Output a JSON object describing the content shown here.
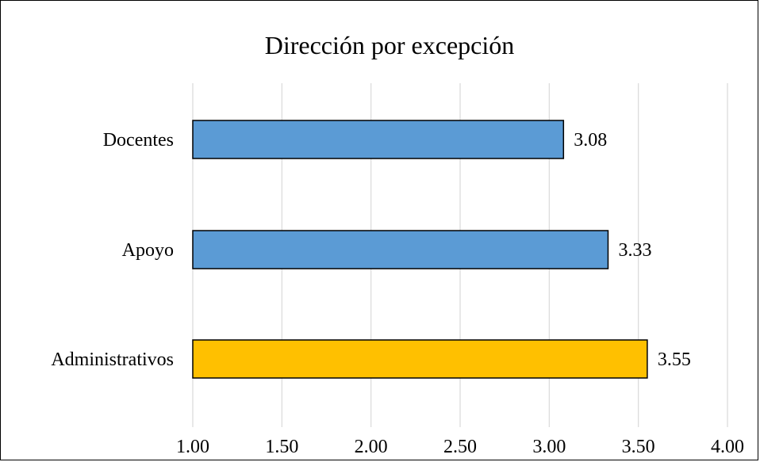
{
  "chart_data": {
    "type": "bar",
    "orientation": "horizontal",
    "title": "Dirección por excepción",
    "categories": [
      "Docentes",
      "Apoyo",
      "Administrativos"
    ],
    "values": [
      3.08,
      3.33,
      3.55
    ],
    "value_labels": [
      "3.08",
      "3.33",
      "3.55"
    ],
    "bar_colors": [
      "#5B9BD5",
      "#5B9BD5",
      "#FFC000"
    ],
    "xlim": [
      1.0,
      4.0
    ],
    "xticks": [
      "1.00",
      "1.50",
      "2.00",
      "2.50",
      "3.00",
      "3.50",
      "4.00"
    ],
    "grid": "vertical",
    "legend": "none",
    "xlabel": "",
    "ylabel": ""
  }
}
